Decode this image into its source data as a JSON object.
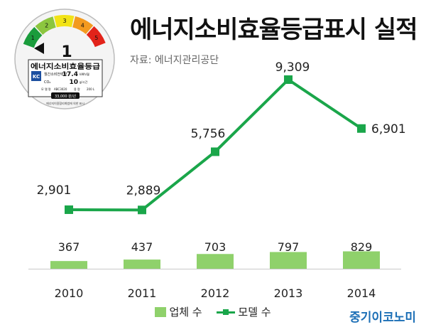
{
  "title": "에너지소비효율등급표시 실적",
  "source": "자료: 에너지관리공단",
  "brand": "중기이코노미",
  "label_badge": {
    "scale_numbers": [
      "1",
      "2",
      "3",
      "4",
      "5"
    ],
    "grade": "1",
    "header": "에너지소비효율등급",
    "row1_label": "월간소비전력량",
    "row1_value": "17.4",
    "row1_unit": "kWh/월",
    "row2_label": "CO₂",
    "row2_value": "10",
    "row2_unit": "g/시간",
    "model_label": "모 델 명",
    "model_value": "ABC3020",
    "capacity_label": "용 량",
    "capacity_value": "200 L",
    "price": "33,000 원/년",
    "footer": "에너지이용합리화법에 의한 표시",
    "kc": "KC",
    "colors": [
      "#1a9c3c",
      "#8cc63f",
      "#f2e316",
      "#f39a1f",
      "#e2231a"
    ]
  },
  "legend": {
    "bar": "업체 수",
    "line": "모델 수"
  },
  "chart_data": {
    "type": "bar+line",
    "categories": [
      "2010",
      "2011",
      "2012",
      "2013",
      "2014"
    ],
    "series": [
      {
        "name": "업체 수",
        "type": "bar",
        "values": [
          367,
          437,
          703,
          797,
          829
        ],
        "labels": [
          "367",
          "437",
          "703",
          "797",
          "829"
        ],
        "color": "#8fd16b"
      },
      {
        "name": "모델 수",
        "type": "line",
        "values": [
          2901,
          2889,
          5756,
          9309,
          6901
        ],
        "labels": [
          "2,901",
          "2,889",
          "5,756",
          "9,309",
          "6,901"
        ],
        "color": "#1aa64a"
      }
    ],
    "xlabel": "",
    "ylabel": "",
    "grid": false,
    "legend_position": "bottom"
  }
}
